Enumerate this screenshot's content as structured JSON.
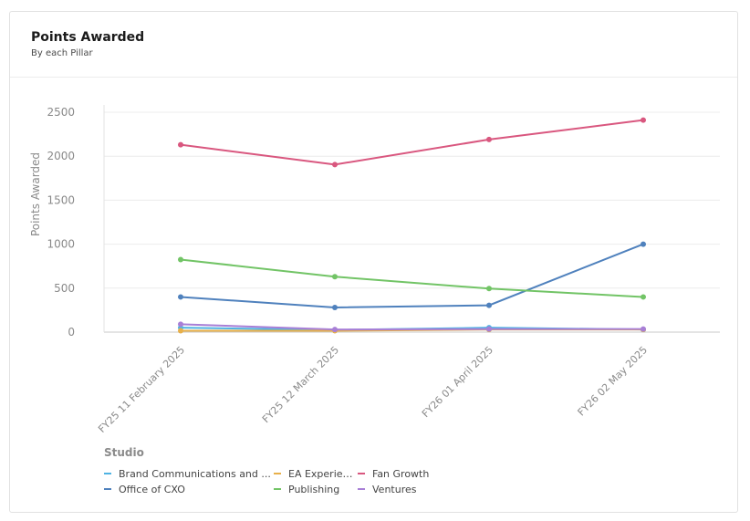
{
  "card": {
    "title": "Points Awarded",
    "subtitle": "By each Pillar"
  },
  "legend": {
    "title": "Studio",
    "items": [
      {
        "label": "Brand Communications and ...",
        "color": "#4fb3e3"
      },
      {
        "label": "EA Experiences",
        "color": "#e8b04a"
      },
      {
        "label": "Fan Growth",
        "color": "#d9577f"
      },
      {
        "label": "Office of CXO",
        "color": "#4f81bd"
      },
      {
        "label": "Publishing",
        "color": "#72c466"
      },
      {
        "label": "Ventures",
        "color": "#a87fd6"
      }
    ]
  },
  "chart_data": {
    "type": "line",
    "ylabel": "Points Awarded",
    "xlabel": "",
    "ylim": [
      0,
      2500
    ],
    "yticks": [
      0,
      500,
      1000,
      1500,
      2000,
      2500
    ],
    "grid": true,
    "legend_position": "bottom",
    "categories": [
      "FY25 11 February 2025",
      "FY25 12 March 2025",
      "FY26 01 April 2025",
      "FY26 02 May 2025"
    ],
    "series": [
      {
        "name": "Brand Communications and ...",
        "color": "#4fb3e3",
        "values": [
          50,
          25,
          50,
          30
        ]
      },
      {
        "name": "EA Experiences",
        "color": "#e8b04a",
        "values": [
          15,
          15,
          30,
          30
        ]
      },
      {
        "name": "Fan Growth",
        "color": "#d9577f",
        "values": [
          2130,
          1905,
          2190,
          2410
        ]
      },
      {
        "name": "Office of CXO",
        "color": "#4f81bd",
        "values": [
          400,
          280,
          305,
          1000
        ]
      },
      {
        "name": "Publishing",
        "color": "#72c466",
        "values": [
          825,
          630,
          495,
          400
        ]
      },
      {
        "name": "Ventures",
        "color": "#a87fd6",
        "values": [
          90,
          30,
          35,
          35
        ]
      }
    ]
  }
}
